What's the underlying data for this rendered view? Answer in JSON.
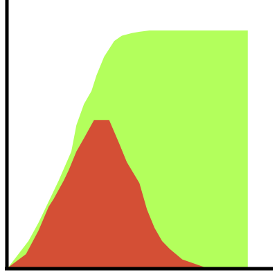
{
  "chart_data": {
    "type": "area",
    "title": "",
    "xlabel": "",
    "ylabel": "",
    "xlim": [
      0,
      100
    ],
    "ylim": [
      0,
      100
    ],
    "grid": false,
    "legend": "none",
    "series": [
      {
        "color": "#b3ff5c",
        "x": [
          0,
          8,
          12,
          15,
          20,
          25,
          27,
          30,
          33,
          35,
          38,
          42,
          45,
          49,
          52,
          56,
          65,
          70,
          80,
          95
        ],
        "y": [
          0,
          10,
          17,
          23,
          33,
          44,
          54,
          62,
          67,
          73,
          80,
          86,
          88,
          89,
          89.5,
          90,
          90,
          90,
          90,
          90
        ]
      },
      {
        "color": "#d44f35",
        "x": [
          0,
          7,
          12,
          16,
          18,
          22,
          24,
          27,
          30,
          34,
          40,
          44,
          47,
          52,
          55,
          58,
          61,
          64,
          69,
          75,
          78
        ],
        "y": [
          0,
          5,
          14,
          23,
          26,
          33,
          37,
          44,
          49,
          56,
          56,
          47,
          40,
          32,
          22,
          15,
          10,
          7,
          3,
          1,
          0
        ]
      }
    ]
  }
}
